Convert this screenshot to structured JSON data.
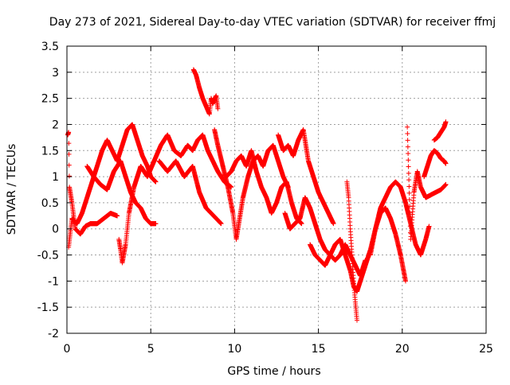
{
  "chart_data": {
    "type": "scatter",
    "title": "Day 273 of 2021, Sidereal Day-to-day VTEC variation (SDTVAR) for receiver ffmj",
    "xlabel": "GPS time / hours",
    "ylabel": "SDTVAR / TECUs",
    "xlim": [
      0,
      25
    ],
    "ylim": [
      -2,
      3.5
    ],
    "xticks": [
      0,
      5,
      10,
      15,
      20,
      25
    ],
    "yticks": [
      -2,
      -1.5,
      -1,
      -0.5,
      0,
      0.5,
      1,
      1.5,
      2,
      2.5,
      3,
      3.5
    ],
    "grid": true,
    "marker": "+",
    "color": "#ff0000",
    "series": [
      {
        "values": [
          [
            0.05,
            1.8
          ],
          [
            0.1,
            1.85
          ],
          [
            0.15,
            0.8
          ],
          [
            0.3,
            0.5
          ],
          [
            0.5,
            0.0
          ],
          [
            0.8,
            -0.1
          ],
          [
            1.1,
            0.05
          ],
          [
            1.4,
            0.1
          ],
          [
            1.8,
            0.1
          ],
          [
            2.2,
            0.2
          ],
          [
            2.6,
            0.3
          ],
          [
            3.0,
            0.25
          ]
        ]
      },
      {
        "values": [
          [
            0.1,
            -0.35
          ],
          [
            0.3,
            0.2
          ],
          [
            0.6,
            0.1
          ],
          [
            0.9,
            0.3
          ],
          [
            1.2,
            0.6
          ],
          [
            1.5,
            0.9
          ],
          [
            1.8,
            1.2
          ],
          [
            2.1,
            1.5
          ],
          [
            2.4,
            1.7
          ],
          [
            2.7,
            1.5
          ],
          [
            3.0,
            1.3
          ],
          [
            3.3,
            1.6
          ],
          [
            3.6,
            1.9
          ],
          [
            3.9,
            2.0
          ],
          [
            4.2,
            1.7
          ],
          [
            4.5,
            1.4
          ],
          [
            4.8,
            1.2
          ],
          [
            5.0,
            1.0
          ],
          [
            5.3,
            0.9
          ]
        ]
      },
      {
        "values": [
          [
            1.2,
            1.2
          ],
          [
            1.6,
            1.0
          ],
          [
            2.0,
            0.85
          ],
          [
            2.4,
            0.75
          ],
          [
            2.8,
            1.1
          ],
          [
            3.2,
            1.3
          ],
          [
            3.4,
            1.1
          ],
          [
            3.6,
            0.9
          ],
          [
            3.8,
            0.7
          ],
          [
            4.1,
            0.5
          ],
          [
            4.4,
            0.4
          ],
          [
            4.7,
            0.2
          ],
          [
            5.0,
            0.1
          ],
          [
            5.3,
            0.1
          ]
        ]
      },
      {
        "values": [
          [
            3.1,
            -0.2
          ],
          [
            3.2,
            -0.4
          ],
          [
            3.3,
            -0.65
          ],
          [
            3.5,
            -0.3
          ],
          [
            3.7,
            0.3
          ],
          [
            4.0,
            0.8
          ],
          [
            4.4,
            1.2
          ],
          [
            4.8,
            1.0
          ],
          [
            5.2,
            1.3
          ],
          [
            5.6,
            1.6
          ],
          [
            6.0,
            1.8
          ],
          [
            6.4,
            1.5
          ],
          [
            6.8,
            1.4
          ],
          [
            7.2,
            1.6
          ],
          [
            7.5,
            1.5
          ],
          [
            7.8,
            1.7
          ],
          [
            8.1,
            1.8
          ],
          [
            8.4,
            1.5
          ],
          [
            8.7,
            1.3
          ],
          [
            9.0,
            1.1
          ],
          [
            9.4,
            0.9
          ],
          [
            9.8,
            0.8
          ]
        ]
      },
      {
        "values": [
          [
            5.5,
            1.3
          ],
          [
            6.0,
            1.1
          ],
          [
            6.5,
            1.3
          ],
          [
            7.0,
            1.0
          ],
          [
            7.5,
            1.2
          ],
          [
            7.9,
            0.7
          ],
          [
            8.3,
            0.4
          ],
          [
            8.6,
            0.3
          ],
          [
            8.9,
            0.2
          ],
          [
            9.2,
            0.1
          ]
        ]
      },
      {
        "values": [
          [
            7.55,
            3.05
          ],
          [
            7.7,
            2.95
          ],
          [
            7.9,
            2.7
          ],
          [
            8.1,
            2.5
          ],
          [
            8.3,
            2.35
          ],
          [
            8.5,
            2.2
          ],
          [
            8.6,
            2.5
          ],
          [
            8.7,
            2.4
          ],
          [
            8.9,
            2.55
          ],
          [
            9.0,
            2.3
          ]
        ]
      },
      {
        "values": [
          [
            8.8,
            1.9
          ],
          [
            9.0,
            1.6
          ],
          [
            9.3,
            1.2
          ],
          [
            9.6,
            0.8
          ],
          [
            9.9,
            0.3
          ],
          [
            10.1,
            -0.2
          ],
          [
            10.3,
            0.2
          ],
          [
            10.5,
            0.6
          ],
          [
            10.8,
            1.0
          ],
          [
            11.1,
            1.3
          ],
          [
            11.4,
            1.4
          ],
          [
            11.7,
            1.2
          ],
          [
            12.0,
            1.5
          ],
          [
            12.3,
            1.6
          ],
          [
            12.6,
            1.3
          ],
          [
            12.9,
            1.0
          ],
          [
            13.2,
            0.8
          ]
        ]
      },
      {
        "values": [
          [
            9.5,
            1.0
          ],
          [
            9.8,
            1.1
          ],
          [
            10.1,
            1.3
          ],
          [
            10.4,
            1.4
          ],
          [
            10.7,
            1.2
          ],
          [
            11.0,
            1.5
          ],
          [
            11.3,
            1.1
          ],
          [
            11.6,
            0.8
          ],
          [
            11.9,
            0.6
          ],
          [
            12.2,
            0.3
          ],
          [
            12.5,
            0.5
          ],
          [
            12.8,
            0.8
          ],
          [
            13.1,
            0.9
          ],
          [
            13.4,
            0.5
          ],
          [
            13.7,
            0.2
          ],
          [
            14.0,
            0.1
          ]
        ]
      },
      {
        "values": [
          [
            12.6,
            1.8
          ],
          [
            12.9,
            1.5
          ],
          [
            13.2,
            1.6
          ],
          [
            13.5,
            1.4
          ],
          [
            13.8,
            1.7
          ],
          [
            14.1,
            1.9
          ],
          [
            14.4,
            1.3
          ],
          [
            14.7,
            1.0
          ],
          [
            15.0,
            0.7
          ],
          [
            15.3,
            0.5
          ],
          [
            15.6,
            0.3
          ],
          [
            15.9,
            0.1
          ]
        ]
      },
      {
        "values": [
          [
            13.0,
            0.3
          ],
          [
            13.3,
            0.0
          ],
          [
            13.6,
            0.1
          ],
          [
            13.9,
            0.2
          ],
          [
            14.2,
            0.6
          ],
          [
            14.5,
            0.4
          ],
          [
            14.8,
            0.1
          ],
          [
            15.1,
            -0.2
          ],
          [
            15.4,
            -0.4
          ],
          [
            15.7,
            -0.5
          ],
          [
            16.0,
            -0.6
          ],
          [
            16.3,
            -0.5
          ],
          [
            16.6,
            -0.3
          ],
          [
            16.9,
            -0.5
          ],
          [
            17.2,
            -0.7
          ],
          [
            17.5,
            -0.9
          ],
          [
            17.8,
            -0.6
          ]
        ]
      },
      {
        "values": [
          [
            14.5,
            -0.3
          ],
          [
            14.8,
            -0.5
          ],
          [
            15.1,
            -0.6
          ],
          [
            15.4,
            -0.7
          ],
          [
            15.7,
            -0.5
          ],
          [
            16.0,
            -0.3
          ],
          [
            16.3,
            -0.2
          ],
          [
            16.6,
            -0.5
          ],
          [
            16.9,
            -0.8
          ],
          [
            17.1,
            -1.1
          ],
          [
            17.3,
            -1.2
          ],
          [
            17.5,
            -1.0
          ],
          [
            17.8,
            -0.7
          ],
          [
            18.1,
            -0.4
          ],
          [
            18.4,
            0.0
          ],
          [
            18.7,
            0.3
          ],
          [
            19.0,
            0.4
          ],
          [
            19.3,
            0.2
          ],
          [
            19.6,
            -0.1
          ],
          [
            19.9,
            -0.5
          ],
          [
            20.2,
            -1.0
          ]
        ]
      },
      {
        "values": [
          [
            16.7,
            0.9
          ],
          [
            16.8,
            0.6
          ],
          [
            16.9,
            0.0
          ],
          [
            17.0,
            -0.5
          ],
          [
            17.1,
            -1.0
          ],
          [
            17.2,
            -1.4
          ],
          [
            17.3,
            -1.75
          ]
        ]
      },
      {
        "values": [
          [
            18.1,
            -0.5
          ],
          [
            18.4,
            0.0
          ],
          [
            18.7,
            0.4
          ],
          [
            19.0,
            0.6
          ],
          [
            19.3,
            0.8
          ],
          [
            19.6,
            0.9
          ],
          [
            19.9,
            0.8
          ],
          [
            20.2,
            0.5
          ],
          [
            20.5,
            0.1
          ],
          [
            20.8,
            -0.3
          ],
          [
            21.1,
            -0.5
          ],
          [
            21.4,
            -0.2
          ],
          [
            21.6,
            0.05
          ]
        ]
      },
      {
        "values": [
          [
            20.3,
            1.95
          ],
          [
            20.5,
            -0.2
          ],
          [
            20.7,
            0.7
          ],
          [
            20.9,
            1.1
          ],
          [
            21.1,
            0.8
          ],
          [
            21.4,
            0.6
          ],
          [
            21.7,
            0.65
          ],
          [
            22.0,
            0.7
          ],
          [
            22.3,
            0.75
          ],
          [
            22.6,
            0.85
          ]
        ]
      },
      {
        "values": [
          [
            21.3,
            1.0
          ],
          [
            21.5,
            1.2
          ],
          [
            21.7,
            1.4
          ],
          [
            21.9,
            1.5
          ],
          [
            22.1,
            1.45
          ],
          [
            22.3,
            1.35
          ],
          [
            22.5,
            1.3
          ],
          [
            22.6,
            1.25
          ]
        ]
      },
      {
        "values": [
          [
            21.9,
            1.7
          ],
          [
            22.1,
            1.75
          ],
          [
            22.3,
            1.85
          ],
          [
            22.5,
            1.95
          ],
          [
            22.6,
            2.05
          ]
        ]
      }
    ]
  }
}
